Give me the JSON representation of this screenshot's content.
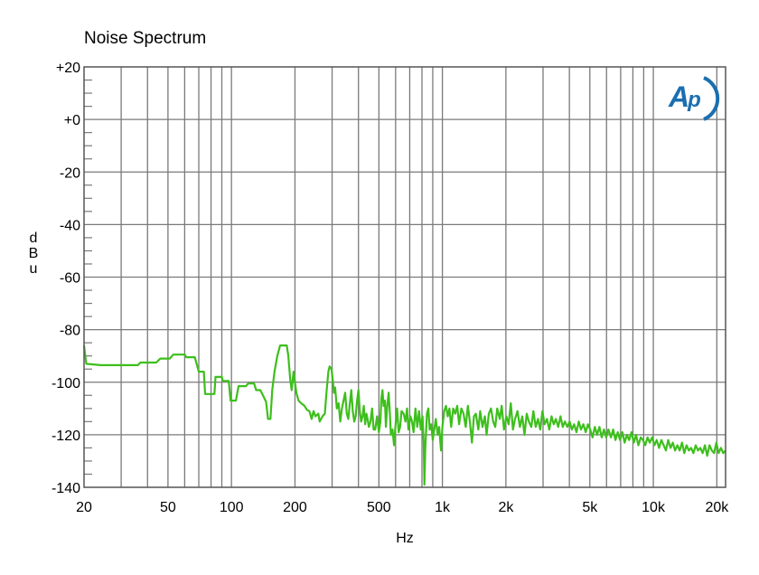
{
  "chart_data": {
    "type": "line",
    "title": "Noise Spectrum",
    "xlabel": "Hz",
    "ylabel": "dBu",
    "x_scale": "log",
    "xlim": [
      20,
      22000
    ],
    "ylim": [
      -140,
      20
    ],
    "grid": true,
    "x_ticks": [
      {
        "value": 20,
        "label": "20"
      },
      {
        "value": 50,
        "label": "50"
      },
      {
        "value": 100,
        "label": "100"
      },
      {
        "value": 200,
        "label": "200"
      },
      {
        "value": 500,
        "label": "500"
      },
      {
        "value": 1000,
        "label": "1k"
      },
      {
        "value": 2000,
        "label": "2k"
      },
      {
        "value": 5000,
        "label": "5k"
      },
      {
        "value": 10000,
        "label": "10k"
      },
      {
        "value": 20000,
        "label": "20k"
      }
    ],
    "y_ticks": [
      {
        "value": 20,
        "label": "+20"
      },
      {
        "value": 0,
        "label": "+0"
      },
      {
        "value": -20,
        "label": "-20"
      },
      {
        "value": -40,
        "label": "-40"
      },
      {
        "value": -60,
        "label": "-60"
      },
      {
        "value": -80,
        "label": "-80"
      },
      {
        "value": -100,
        "label": "-100"
      },
      {
        "value": -120,
        "label": "-120"
      },
      {
        "value": -140,
        "label": "-140"
      }
    ],
    "logo": "AP",
    "series": [
      {
        "color": "#3dbf1c",
        "points": [
          [
            20,
            -86
          ],
          [
            20.5,
            -93
          ],
          [
            24,
            -93.5
          ],
          [
            30,
            -93.5
          ],
          [
            36,
            -93.5
          ],
          [
            37,
            -92.5
          ],
          [
            44,
            -92.5
          ],
          [
            46,
            -91
          ],
          [
            51,
            -91
          ],
          [
            53,
            -89.5
          ],
          [
            60,
            -89.5
          ],
          [
            61,
            -90.5
          ],
          [
            67,
            -90.5
          ],
          [
            70,
            -96
          ],
          [
            74,
            -96
          ],
          [
            75,
            -104.5
          ],
          [
            83,
            -104.5
          ],
          [
            84,
            -98
          ],
          [
            90,
            -98
          ],
          [
            91,
            -99.5
          ],
          [
            97,
            -99.5
          ],
          [
            99,
            -107
          ],
          [
            105,
            -107
          ],
          [
            108,
            -101.5
          ],
          [
            117,
            -101.5
          ],
          [
            120,
            -100.5
          ],
          [
            128,
            -100.5
          ],
          [
            131,
            -103
          ],
          [
            137,
            -103
          ],
          [
            141,
            -105
          ],
          [
            146,
            -107.5
          ],
          [
            149,
            -114
          ],
          [
            153,
            -114
          ],
          [
            156,
            -103
          ],
          [
            160,
            -96
          ],
          [
            165,
            -90
          ],
          [
            170,
            -86
          ],
          [
            178,
            -86
          ],
          [
            183,
            -86
          ],
          [
            186,
            -90
          ],
          [
            190,
            -99
          ],
          [
            193,
            -103
          ],
          [
            197,
            -96
          ],
          [
            203,
            -104
          ],
          [
            208,
            -107
          ],
          [
            214,
            -108
          ],
          [
            222,
            -109
          ],
          [
            228,
            -110.5
          ],
          [
            234,
            -111
          ],
          [
            240,
            -114
          ],
          [
            245,
            -111
          ],
          [
            250,
            -113
          ],
          [
            258,
            -112
          ],
          [
            262,
            -115
          ],
          [
            270,
            -113
          ],
          [
            277,
            -112
          ],
          [
            282,
            -104
          ],
          [
            288,
            -96
          ],
          [
            292,
            -94
          ],
          [
            298,
            -95
          ],
          [
            302,
            -99
          ],
          [
            306,
            -104
          ],
          [
            310,
            -102
          ],
          [
            316,
            -110
          ],
          [
            322,
            -108
          ],
          [
            328,
            -115
          ],
          [
            334,
            -110
          ],
          [
            340,
            -107
          ],
          [
            346,
            -104
          ],
          [
            352,
            -112
          ],
          [
            358,
            -114
          ],
          [
            364,
            -108
          ],
          [
            370,
            -103
          ],
          [
            376,
            -111
          ],
          [
            382,
            -115
          ],
          [
            388,
            -113
          ],
          [
            394,
            -107
          ],
          [
            400,
            -103
          ],
          [
            406,
            -111
          ],
          [
            412,
            -115
          ],
          [
            418,
            -113
          ],
          [
            424,
            -109
          ],
          [
            430,
            -116
          ],
          [
            436,
            -112
          ],
          [
            442,
            -114
          ],
          [
            448,
            -117
          ],
          [
            456,
            -115
          ],
          [
            464,
            -110
          ],
          [
            472,
            -118
          ],
          [
            480,
            -118
          ],
          [
            490,
            -113
          ],
          [
            500,
            -119
          ],
          [
            508,
            -115
          ],
          [
            514,
            -106
          ],
          [
            520,
            -103
          ],
          [
            526,
            -109
          ],
          [
            534,
            -107
          ],
          [
            540,
            -117
          ],
          [
            548,
            -109
          ],
          [
            556,
            -104
          ],
          [
            562,
            -110
          ],
          [
            570,
            -120
          ],
          [
            580,
            -118
          ],
          [
            590,
            -124
          ],
          [
            600,
            -116
          ],
          [
            610,
            -110
          ],
          [
            620,
            -119
          ],
          [
            630,
            -117
          ],
          [
            640,
            -111
          ],
          [
            655,
            -112
          ],
          [
            668,
            -115
          ],
          [
            680,
            -110
          ],
          [
            690,
            -118
          ],
          [
            705,
            -113
          ],
          [
            718,
            -115
          ],
          [
            730,
            -119
          ],
          [
            745,
            -110
          ],
          [
            760,
            -117
          ],
          [
            775,
            -111
          ],
          [
            790,
            -118
          ],
          [
            805,
            -113
          ],
          [
            815,
            -123
          ],
          [
            822,
            -139
          ],
          [
            830,
            -125
          ],
          [
            845,
            -112
          ],
          [
            858,
            -110
          ],
          [
            870,
            -118
          ],
          [
            885,
            -116
          ],
          [
            900,
            -122
          ],
          [
            915,
            -118
          ],
          [
            930,
            -114
          ],
          [
            950,
            -120
          ],
          [
            965,
            -117
          ],
          [
            985,
            -126
          ],
          [
            1000,
            -117
          ],
          [
            1020,
            -111
          ],
          [
            1040,
            -109
          ],
          [
            1060,
            -113
          ],
          [
            1080,
            -110
          ],
          [
            1100,
            -117
          ],
          [
            1125,
            -110
          ],
          [
            1150,
            -112
          ],
          [
            1175,
            -109
          ],
          [
            1200,
            -116
          ],
          [
            1230,
            -110
          ],
          [
            1260,
            -112
          ],
          [
            1290,
            -117
          ],
          [
            1320,
            -109
          ],
          [
            1350,
            -115
          ],
          [
            1380,
            -123
          ],
          [
            1410,
            -113
          ],
          [
            1440,
            -112
          ],
          [
            1480,
            -118
          ],
          [
            1510,
            -111
          ],
          [
            1550,
            -117
          ],
          [
            1590,
            -113
          ],
          [
            1620,
            -120
          ],
          [
            1660,
            -112
          ],
          [
            1700,
            -110
          ],
          [
            1740,
            -115
          ],
          [
            1780,
            -117
          ],
          [
            1820,
            -110
          ],
          [
            1870,
            -114
          ],
          [
            1910,
            -109
          ],
          [
            1960,
            -118
          ],
          [
            2010,
            -113
          ],
          [
            2060,
            -116
          ],
          [
            2110,
            -108
          ],
          [
            2160,
            -118
          ],
          [
            2210,
            -114
          ],
          [
            2270,
            -111
          ],
          [
            2330,
            -117
          ],
          [
            2390,
            -113
          ],
          [
            2450,
            -120
          ],
          [
            2510,
            -112
          ],
          [
            2570,
            -115
          ],
          [
            2640,
            -117
          ],
          [
            2700,
            -111
          ],
          [
            2770,
            -117
          ],
          [
            2840,
            -114
          ],
          [
            2910,
            -118
          ],
          [
            2980,
            -111
          ],
          [
            3050,
            -116
          ],
          [
            3130,
            -114
          ],
          [
            3210,
            -118
          ],
          [
            3290,
            -113
          ],
          [
            3370,
            -116
          ],
          [
            3450,
            -114
          ],
          [
            3540,
            -117
          ],
          [
            3630,
            -113
          ],
          [
            3720,
            -117
          ],
          [
            3810,
            -115
          ],
          [
            3910,
            -117
          ],
          [
            4010,
            -115
          ],
          [
            4110,
            -118
          ],
          [
            4210,
            -116
          ],
          [
            4320,
            -119
          ],
          [
            4430,
            -115
          ],
          [
            4540,
            -118
          ],
          [
            4660,
            -116
          ],
          [
            4780,
            -119
          ],
          [
            4900,
            -116
          ],
          [
            5020,
            -118
          ],
          [
            5150,
            -121
          ],
          [
            5280,
            -117
          ],
          [
            5410,
            -120
          ],
          [
            5550,
            -117
          ],
          [
            5690,
            -121
          ],
          [
            5830,
            -118
          ],
          [
            5980,
            -121
          ],
          [
            6130,
            -118
          ],
          [
            6290,
            -121
          ],
          [
            6450,
            -118
          ],
          [
            6610,
            -122
          ],
          [
            6780,
            -119
          ],
          [
            6950,
            -122
          ],
          [
            7130,
            -119
          ],
          [
            7310,
            -123
          ],
          [
            7490,
            -120
          ],
          [
            7680,
            -122
          ],
          [
            7880,
            -119
          ],
          [
            8080,
            -123
          ],
          [
            8280,
            -120
          ],
          [
            8490,
            -124
          ],
          [
            8710,
            -121
          ],
          [
            8930,
            -122
          ],
          [
            9150,
            -124
          ],
          [
            9390,
            -121
          ],
          [
            9620,
            -123
          ],
          [
            9870,
            -121
          ],
          [
            10120,
            -124
          ],
          [
            10380,
            -122
          ],
          [
            10640,
            -125
          ],
          [
            10910,
            -122
          ],
          [
            11190,
            -124
          ],
          [
            11470,
            -126
          ],
          [
            11760,
            -122
          ],
          [
            12060,
            -125
          ],
          [
            12370,
            -123
          ],
          [
            12680,
            -126
          ],
          [
            13000,
            -124
          ],
          [
            13330,
            -126
          ],
          [
            13670,
            -123
          ],
          [
            14020,
            -127
          ],
          [
            14370,
            -124
          ],
          [
            14740,
            -126
          ],
          [
            15110,
            -125
          ],
          [
            15490,
            -127
          ],
          [
            15890,
            -124
          ],
          [
            16290,
            -126
          ],
          [
            16700,
            -125
          ],
          [
            17130,
            -127
          ],
          [
            17560,
            -124
          ],
          [
            18000,
            -128
          ],
          [
            18460,
            -124
          ],
          [
            18930,
            -126
          ],
          [
            19410,
            -127
          ],
          [
            19900,
            -123
          ],
          [
            20400,
            -127
          ],
          [
            20920,
            -125
          ],
          [
            21450,
            -127
          ],
          [
            22000,
            -126
          ]
        ]
      }
    ]
  }
}
